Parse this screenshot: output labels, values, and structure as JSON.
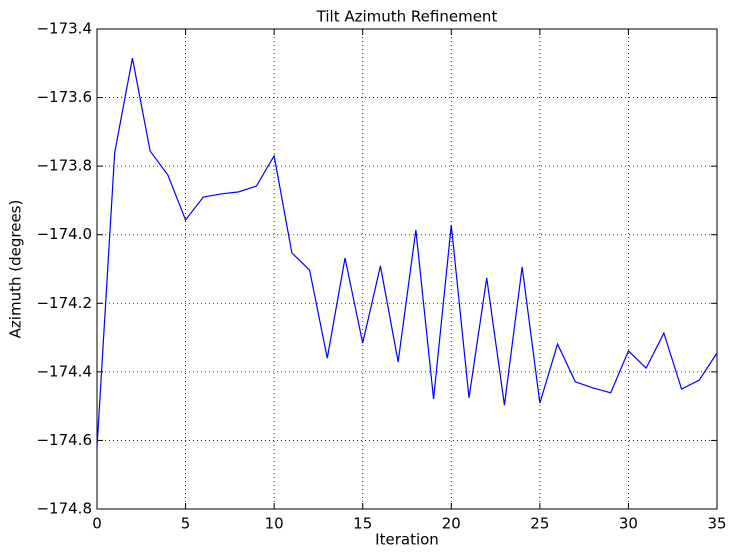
{
  "chart_data": {
    "type": "line",
    "title": "Tilt Azimuth Refinement",
    "x_label": "Iteration",
    "y_label": "Azimuth (degrees)",
    "x": [
      0,
      1,
      2,
      3,
      4,
      5,
      6,
      7,
      8,
      9,
      10,
      11,
      12,
      13,
      14,
      15,
      16,
      17,
      18,
      19,
      20,
      21,
      22,
      23,
      24,
      25,
      26,
      27,
      28,
      29,
      30,
      31,
      32,
      33,
      34,
      35
    ],
    "series": [
      {
        "name": "Azimuth",
        "color": "#0000ff",
        "values": [
          -174.62,
          -173.76,
          -173.485,
          -173.756,
          -173.826,
          -173.957,
          -173.89,
          -173.881,
          -173.875,
          -173.858,
          -173.77,
          -174.053,
          -174.103,
          -174.36,
          -174.068,
          -174.316,
          -174.091,
          -174.371,
          -173.986,
          -174.479,
          -173.972,
          -174.476,
          -174.126,
          -174.497,
          -174.094,
          -174.491,
          -174.319,
          -174.429,
          -174.447,
          -174.461,
          -174.339,
          -174.389,
          -174.287,
          -174.45,
          -174.424,
          -174.345
        ]
      }
    ],
    "xlim": [
      0,
      35
    ],
    "xticks": [
      0,
      5,
      10,
      15,
      20,
      25,
      30,
      35
    ],
    "ylim": [
      -174.8,
      -173.4
    ],
    "yticks": [
      {
        "value": -174.8,
        "label": "−174.8"
      },
      {
        "value": -174.6,
        "label": "−174.6"
      },
      {
        "value": -174.4,
        "label": "−174.4"
      },
      {
        "value": -174.2,
        "label": "−174.2"
      },
      {
        "value": -174.0,
        "label": "−174.0"
      },
      {
        "value": -173.8,
        "label": "−173.8"
      },
      {
        "value": -173.6,
        "label": "−173.6"
      },
      {
        "value": -173.4,
        "label": "−173.4"
      }
    ],
    "grid": true
  }
}
